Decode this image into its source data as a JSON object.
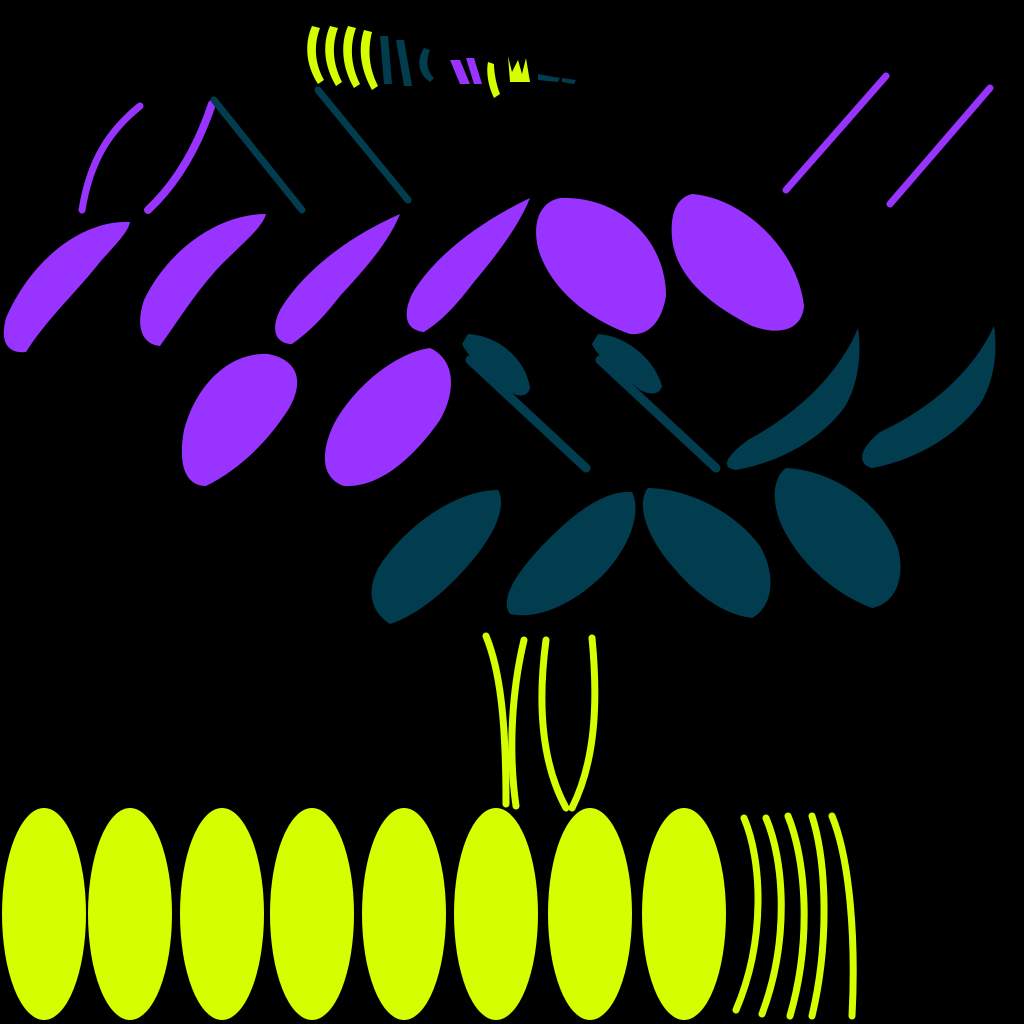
{
  "palette": {
    "background": "#000000",
    "violet": "#9933FF",
    "teal": "#023C4F",
    "lime": "#D5FF00"
  }
}
